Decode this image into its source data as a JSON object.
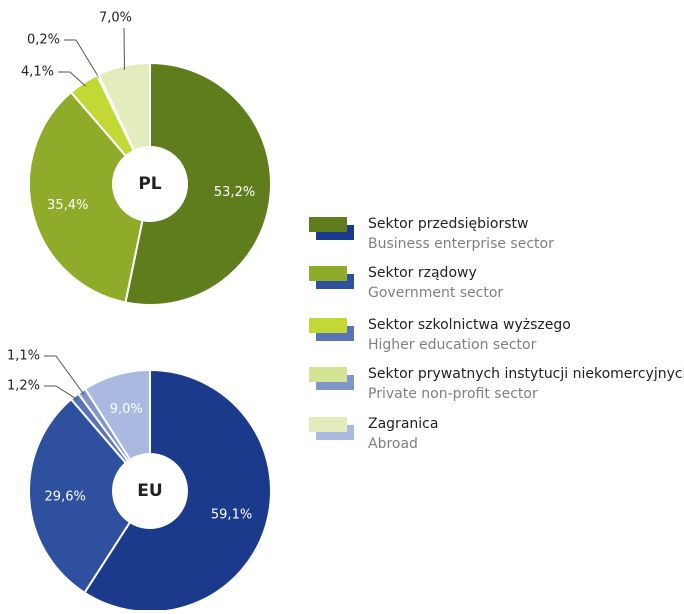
{
  "chart_data": [
    {
      "type": "pie",
      "center_label": "PL",
      "values": [
        53.2,
        35.4,
        4.1,
        0.2,
        7.0
      ],
      "value_labels": [
        "53,2%",
        "35,4%",
        "4,1%",
        "0,2%",
        "7,0%"
      ],
      "colors": [
        "#5f7d1d",
        "#8eac2a",
        "#c2d935",
        "#d3e394",
        "#e3ecbd"
      ]
    },
    {
      "type": "pie",
      "center_label": "EU",
      "values": [
        59.1,
        29.6,
        1.2,
        1.1,
        9.0
      ],
      "value_labels": [
        "59,1%",
        "29,6%",
        "1,2%",
        "1,1%",
        "9,0%"
      ],
      "colors": [
        "#1b3a8c",
        "#2f4f9f",
        "#5a72b8",
        "#8195ca",
        "#aab9e0"
      ]
    }
  ],
  "legend": {
    "entries": [
      {
        "label": "Sektor przedsiębiorstw",
        "sublabel": "Business enterprise sector"
      },
      {
        "label": "Sektor rządowy",
        "sublabel": "Government sector"
      },
      {
        "label": "Sektor szkolnictwa wyższego",
        "sublabel": "Higher education sector"
      },
      {
        "label": "Sektor prywatnych instytucji niekomercyjnych",
        "sublabel": "Private non-profit sector"
      },
      {
        "label": "Zagranica",
        "sublabel": "Abroad"
      }
    ]
  }
}
